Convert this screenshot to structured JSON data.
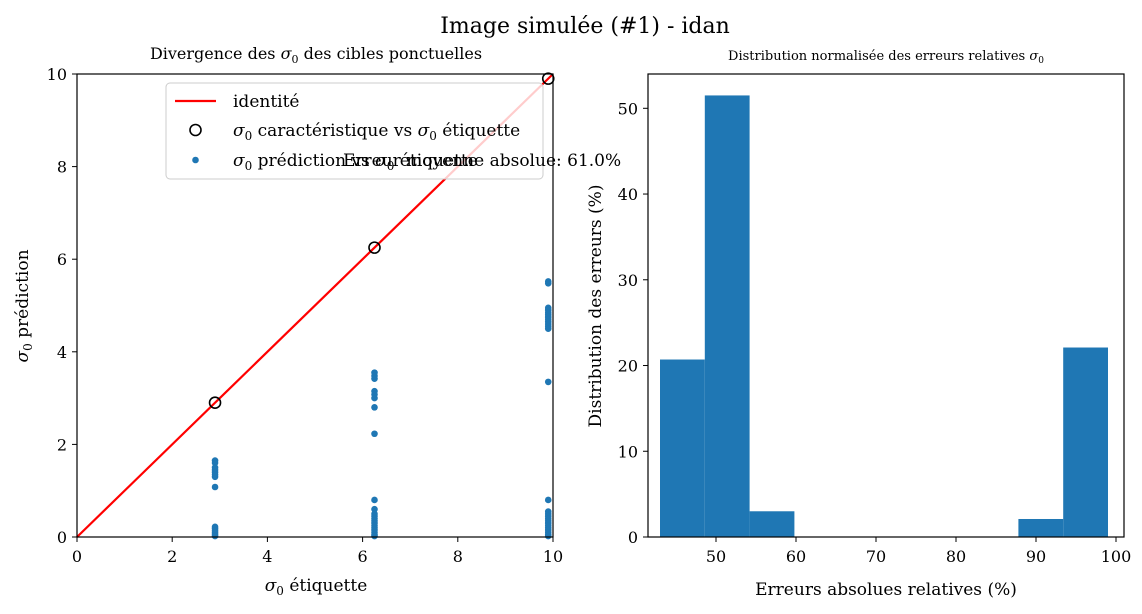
{
  "figure": {
    "suptitle": "Image simulée (#1) - idan"
  },
  "colors": {
    "identity_line": "#ff0000",
    "points": "#1f77b4",
    "bars": "#1f77b4",
    "characteristic_marker_edge": "#000000"
  },
  "chart_data": [
    {
      "type": "scatter",
      "title_prefix": "Divergence des ",
      "title_symbol": "σ",
      "title_sub": "0",
      "title_suffix": " des cibles ponctuelles",
      "xlabel_symbol": "σ",
      "xlabel_sub": "0",
      "xlabel_text": " étiquette",
      "ylabel_symbol": "σ",
      "ylabel_sub": "0",
      "ylabel_text": " prédiction",
      "xlim": [
        0,
        10
      ],
      "ylim": [
        0,
        10
      ],
      "xticks": [
        "0",
        "2",
        "4",
        "6",
        "8",
        "10"
      ],
      "yticks": [
        "0",
        "2",
        "4",
        "6",
        "8",
        "10"
      ],
      "grid": false,
      "legend_position": "top-right",
      "annotation": "Erreur moyenne absolue: 61.0%",
      "series": [
        {
          "name": "identité",
          "kind": "line",
          "x": [
            0,
            10
          ],
          "y": [
            0,
            10
          ]
        },
        {
          "name_symbol": "σ",
          "name_sub": "0",
          "name_mid": " caractéristique vs ",
          "name_symbol2": "σ",
          "name_sub2": "0",
          "name_end": " étiquette",
          "kind": "hollow-circle",
          "points": [
            [
              2.9,
              2.9
            ],
            [
              6.25,
              6.25
            ],
            [
              9.9,
              9.9
            ]
          ]
        },
        {
          "name_symbol": "σ",
          "name_sub": "0",
          "name_mid": " prédiction vs ",
          "name_symbol2": "σ",
          "name_sub2": "0",
          "name_end": " étiquette",
          "kind": "dot",
          "points": [
            [
              2.9,
              1.65
            ],
            [
              2.9,
              1.6
            ],
            [
              2.9,
              1.5
            ],
            [
              2.9,
              1.45
            ],
            [
              2.9,
              1.4
            ],
            [
              2.9,
              1.35
            ],
            [
              2.9,
              1.3
            ],
            [
              2.9,
              1.08
            ],
            [
              2.9,
              0.22
            ],
            [
              2.9,
              0.18
            ],
            [
              2.9,
              0.14
            ],
            [
              2.9,
              0.1
            ],
            [
              2.9,
              0.06
            ],
            [
              2.9,
              0.02
            ],
            [
              6.25,
              3.55
            ],
            [
              6.25,
              3.48
            ],
            [
              6.25,
              3.42
            ],
            [
              6.25,
              3.15
            ],
            [
              6.25,
              3.08
            ],
            [
              6.25,
              3.0
            ],
            [
              6.25,
              2.8
            ],
            [
              6.25,
              2.23
            ],
            [
              6.25,
              0.8
            ],
            [
              6.25,
              0.6
            ],
            [
              6.25,
              0.5
            ],
            [
              6.25,
              0.45
            ],
            [
              6.25,
              0.4
            ],
            [
              6.25,
              0.35
            ],
            [
              6.25,
              0.3
            ],
            [
              6.25,
              0.25
            ],
            [
              6.25,
              0.2
            ],
            [
              6.25,
              0.15
            ],
            [
              6.25,
              0.1
            ],
            [
              6.25,
              0.05
            ],
            [
              6.25,
              0.02
            ],
            [
              9.9,
              5.52
            ],
            [
              9.9,
              5.48
            ],
            [
              9.9,
              4.95
            ],
            [
              9.9,
              4.9
            ],
            [
              9.9,
              4.85
            ],
            [
              9.9,
              4.8
            ],
            [
              9.9,
              4.75
            ],
            [
              9.9,
              4.7
            ],
            [
              9.9,
              4.65
            ],
            [
              9.9,
              4.6
            ],
            [
              9.9,
              4.55
            ],
            [
              9.9,
              4.5
            ],
            [
              9.9,
              3.35
            ],
            [
              9.9,
              0.8
            ],
            [
              9.9,
              0.55
            ],
            [
              9.9,
              0.5
            ],
            [
              9.9,
              0.45
            ],
            [
              9.9,
              0.4
            ],
            [
              9.9,
              0.35
            ],
            [
              9.9,
              0.3
            ],
            [
              9.9,
              0.25
            ],
            [
              9.9,
              0.2
            ],
            [
              9.9,
              0.15
            ],
            [
              9.9,
              0.1
            ],
            [
              9.9,
              0.05
            ],
            [
              9.9,
              0.02
            ]
          ]
        }
      ]
    },
    {
      "type": "bar",
      "subtype": "histogram",
      "title_prefix": "Distribution normalisée des erreurs relatives ",
      "title_symbol": "σ",
      "title_sub": "0",
      "xlabel": "Erreurs absolues relatives (%)",
      "ylabel": "Distribution des erreurs (%)",
      "xlim": [
        41.5,
        101
      ],
      "ylim": [
        0,
        54
      ],
      "xticks": [
        "50",
        "60",
        "70",
        "80",
        "90",
        "100"
      ],
      "yticks": [
        "0",
        "10",
        "20",
        "30",
        "40",
        "50"
      ],
      "grid": false,
      "bins": [
        {
          "x0": 43.0,
          "x1": 48.6,
          "value": 20.7
        },
        {
          "x0": 48.6,
          "x1": 54.2,
          "value": 51.5
        },
        {
          "x0": 54.2,
          "x1": 59.8,
          "value": 3.0
        },
        {
          "x0": 59.8,
          "x1": 65.4,
          "value": 0
        },
        {
          "x0": 65.4,
          "x1": 71.0,
          "value": 0
        },
        {
          "x0": 71.0,
          "x1": 76.6,
          "value": 0
        },
        {
          "x0": 76.6,
          "x1": 82.2,
          "value": 0
        },
        {
          "x0": 82.2,
          "x1": 87.8,
          "value": 0
        },
        {
          "x0": 87.8,
          "x1": 93.4,
          "value": 2.1
        },
        {
          "x0": 93.4,
          "x1": 99.0,
          "value": 22.1
        }
      ]
    }
  ]
}
